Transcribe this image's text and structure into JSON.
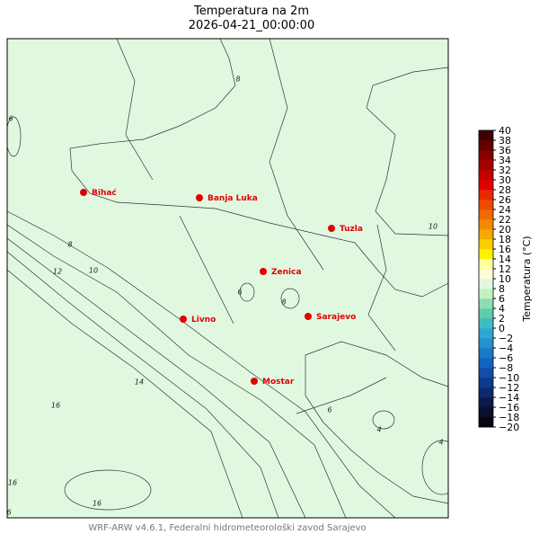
{
  "header": {
    "title": "Temperatura na 2m",
    "subtitle": "2026-04-21_00:00:00"
  },
  "cities": [
    {
      "name": "Bihać"
    },
    {
      "name": "Banja Luka"
    },
    {
      "name": "Tuzla"
    },
    {
      "name": "Zenica"
    },
    {
      "name": "Livno"
    },
    {
      "name": "Sarajevo"
    },
    {
      "name": "Mostar"
    }
  ],
  "contour_labels": [
    8,
    6,
    8,
    10,
    12,
    10,
    6,
    8,
    14,
    16,
    16,
    16,
    6,
    4,
    4,
    6
  ],
  "colorbar": {
    "label": "Temperatura (°C)",
    "lim": [
      -20,
      40
    ],
    "ticks": [
      {
        "value": -20,
        "label": "−20"
      },
      {
        "value": -18,
        "label": "−18"
      },
      {
        "value": -16,
        "label": "−16"
      },
      {
        "value": -14,
        "label": "−14"
      },
      {
        "value": -12,
        "label": "−12"
      },
      {
        "value": -10,
        "label": "−10"
      },
      {
        "value": -8,
        "label": "−8"
      },
      {
        "value": -6,
        "label": "−6"
      },
      {
        "value": -4,
        "label": "−4"
      },
      {
        "value": -2,
        "label": "−2"
      },
      0,
      2,
      4,
      6,
      8,
      10,
      12,
      14,
      16,
      18,
      20,
      22,
      24,
      26,
      28,
      30,
      32,
      34,
      36,
      38,
      40
    ],
    "colors": [
      "#05060f",
      "#0a0f2a",
      "#0c1a4a",
      "#0e2a6e",
      "#0f3a8c",
      "#114da8",
      "#1462bd",
      "#1a7ac8",
      "#2392cf",
      "#2fa8cf",
      "#3fbcc0",
      "#5fcca8",
      "#8edcb6",
      "#c2f2c2",
      "#e0f8e0",
      "#fdfdd8",
      "#ffffa0",
      "#fff000",
      "#ffcc00",
      "#f5a800",
      "#f28a00",
      "#f06a00",
      "#ee4a00",
      "#ea2800",
      "#e00000",
      "#c40000",
      "#a50000",
      "#860000",
      "#640000",
      "#3d0000"
    ]
  },
  "footer": "WRF-ARW v4.6.1, Federalni hidrometeorološki zavod Sarajevo"
}
